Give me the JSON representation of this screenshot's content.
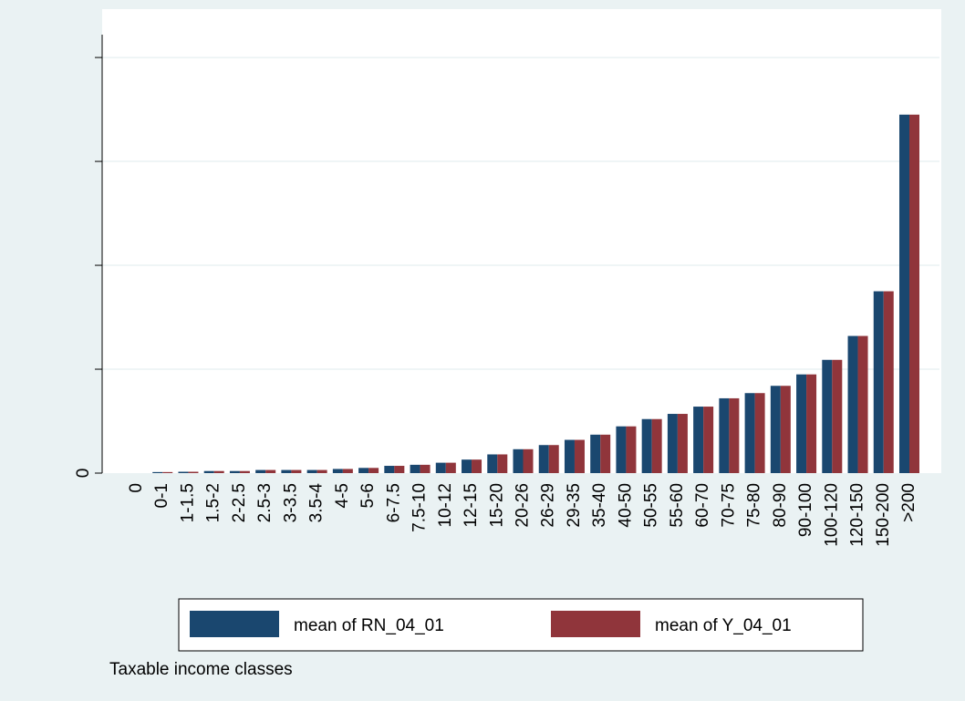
{
  "chart_data": {
    "type": "bar",
    "categories": [
      "0",
      "0-1",
      "1-1.5",
      "1.5-2",
      "2-2.5",
      "2.5-3",
      "3-3.5",
      "3.5-4",
      "4-5",
      "5-6",
      "6-7.5",
      "7.5-10",
      "10-12",
      "12-15",
      "15-20",
      "20-26",
      "26-29",
      "29-35",
      "35-40",
      "40-50",
      "50-55",
      "55-60",
      "60-70",
      "70-75",
      "75-80",
      "80-90",
      "90-100",
      "100-120",
      "120-150",
      "150-200",
      ">200"
    ],
    "series": [
      {
        "name": "mean of RN_04_01",
        "color": "#1a476f",
        "values": [
          0,
          0.01,
          0.013,
          0.02,
          0.02,
          0.03,
          0.03,
          0.03,
          0.04,
          0.05,
          0.07,
          0.08,
          0.1,
          0.13,
          0.18,
          0.23,
          0.27,
          0.32,
          0.37,
          0.45,
          0.52,
          0.57,
          0.64,
          0.72,
          0.77,
          0.84,
          0.95,
          1.09,
          1.32,
          1.75,
          3.45
        ]
      },
      {
        "name": "mean of Y_04_01",
        "color": "#90353b",
        "values": [
          0,
          0.01,
          0.013,
          0.02,
          0.02,
          0.03,
          0.03,
          0.03,
          0.04,
          0.05,
          0.07,
          0.08,
          0.1,
          0.13,
          0.18,
          0.23,
          0.27,
          0.32,
          0.37,
          0.45,
          0.52,
          0.57,
          0.64,
          0.72,
          0.77,
          0.84,
          0.95,
          1.09,
          1.32,
          1.75,
          3.45
        ]
      }
    ],
    "ylim": [
      0,
      4.22
    ],
    "yticks": [
      0
    ],
    "unlabeled_yticks": [
      1,
      2,
      3,
      4
    ],
    "grid": true,
    "note": "Taxable income classes"
  }
}
